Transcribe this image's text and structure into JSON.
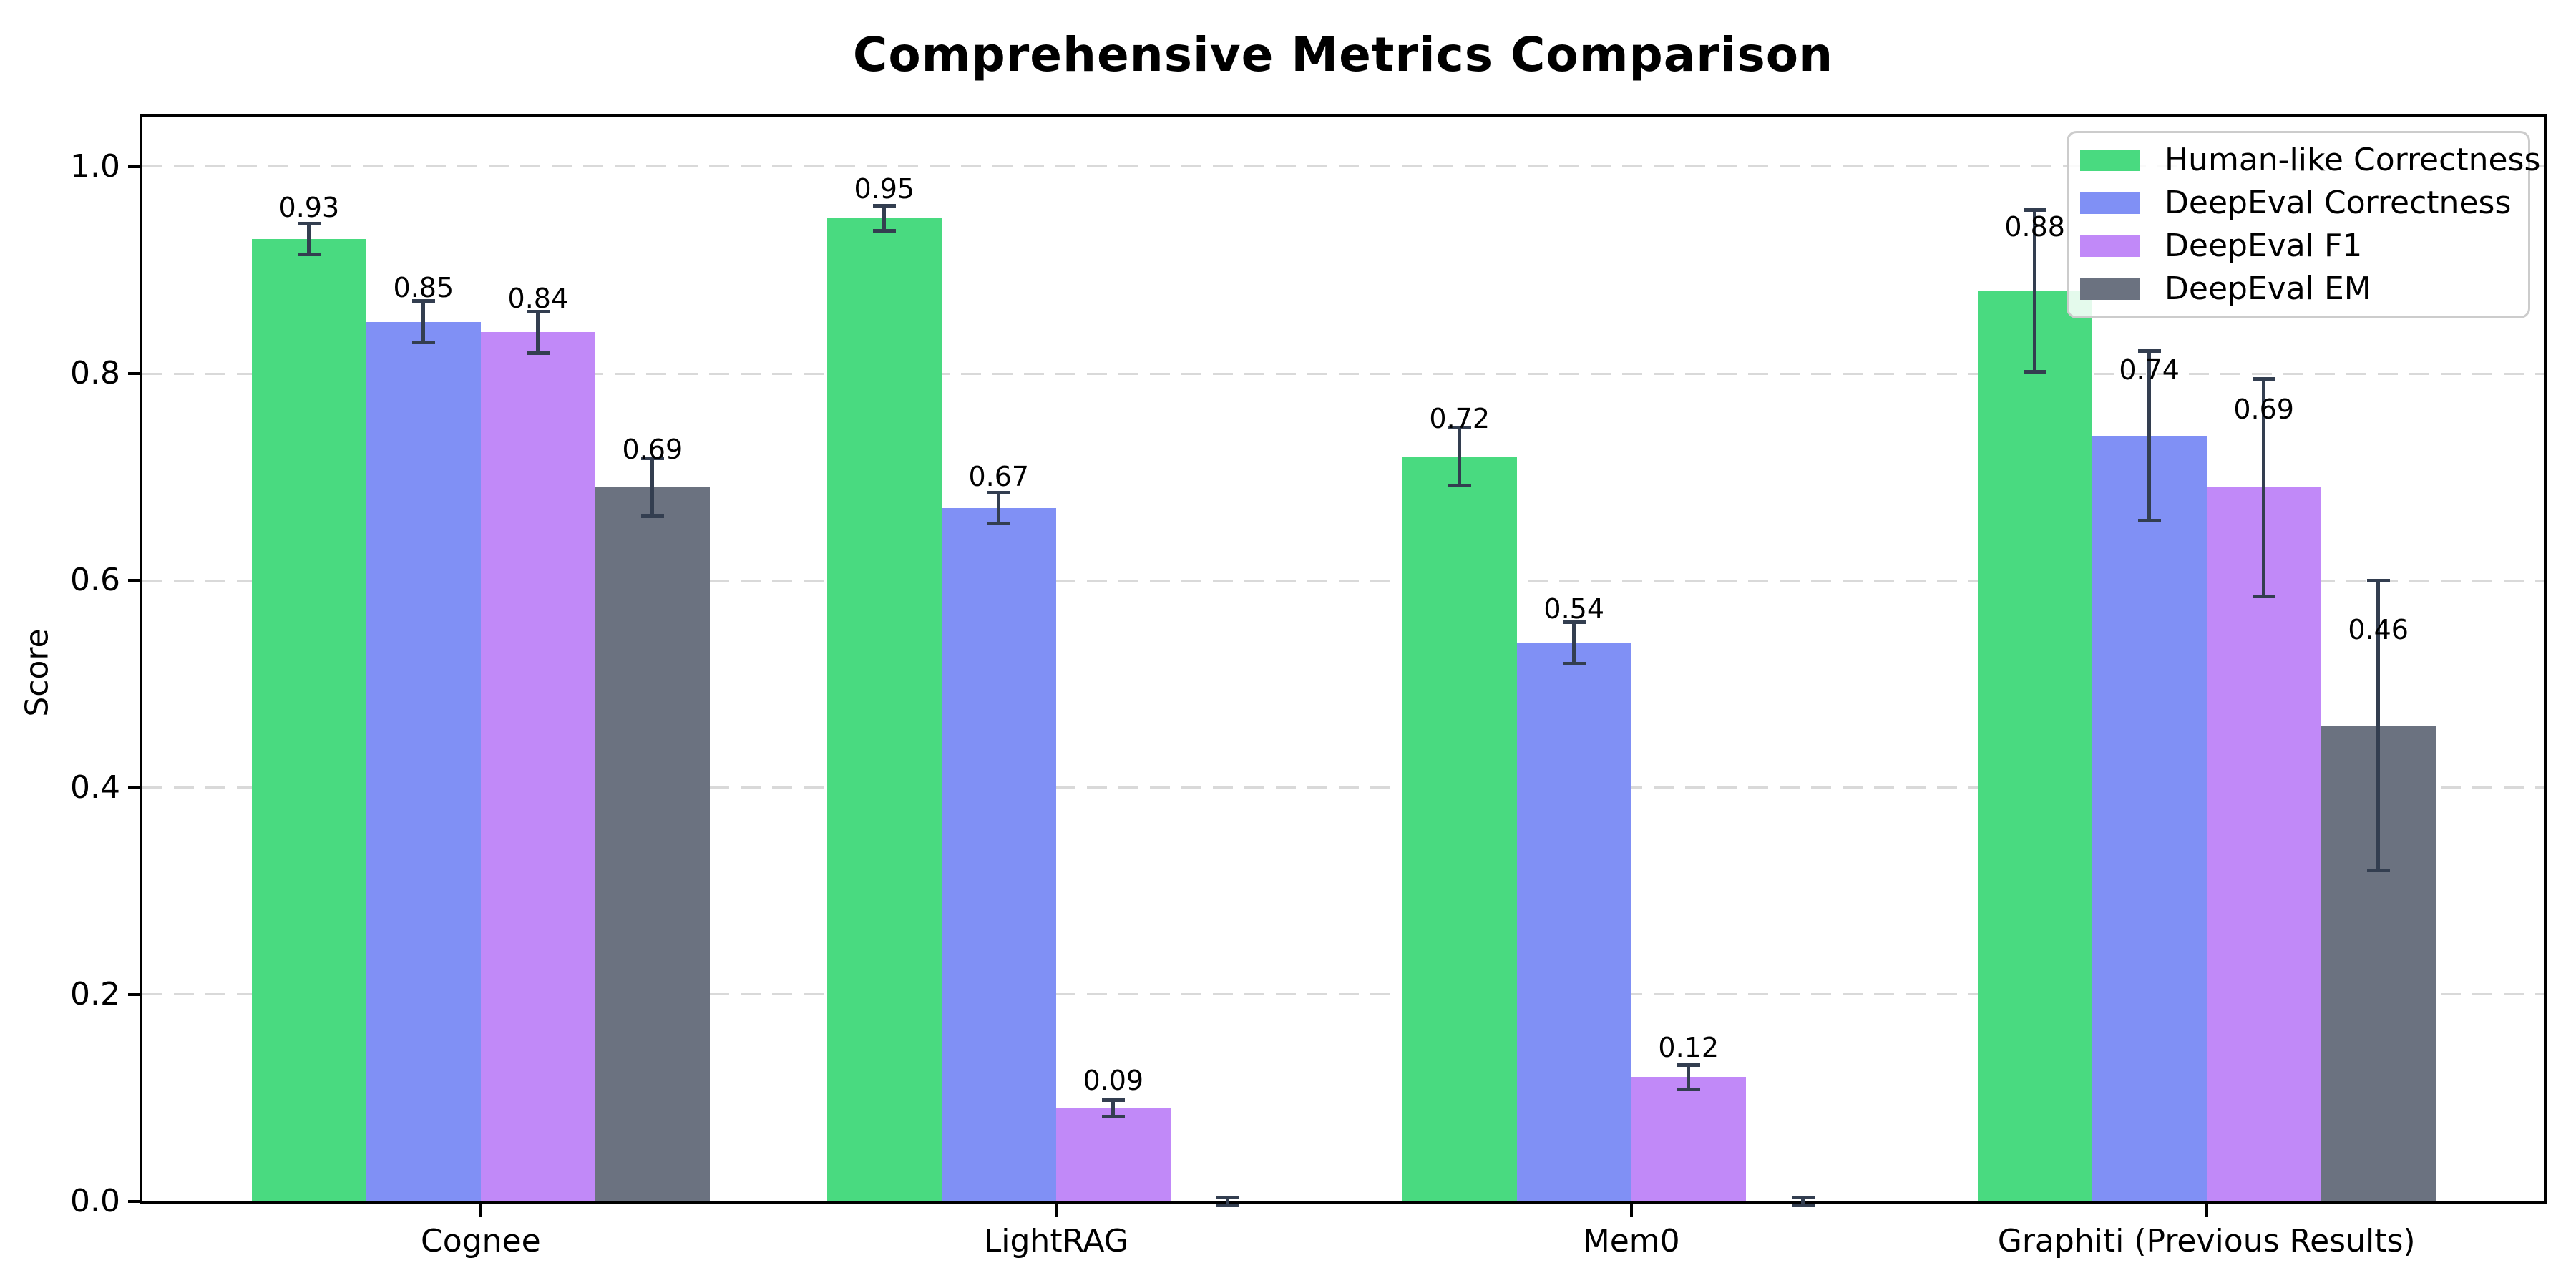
{
  "chart_data": {
    "type": "bar",
    "title": "Comprehensive Metrics Comparison",
    "ylabel": "Score",
    "categories": [
      "Cognee",
      "LightRAG",
      "Mem0",
      "Graphiti (Previous Results)"
    ],
    "series": [
      {
        "name": "Human-like Correctness",
        "color": "#49da80",
        "values": [
          0.93,
          0.95,
          0.72,
          0.88
        ],
        "errors": [
          0.015,
          0.012,
          0.028,
          0.078
        ],
        "labels": [
          "0.93",
          "0.95",
          "0.72",
          "0.88"
        ]
      },
      {
        "name": "DeepEval Correctness",
        "color": "#8090f5",
        "values": [
          0.85,
          0.67,
          0.54,
          0.74
        ],
        "errors": [
          0.02,
          0.015,
          0.02,
          0.082
        ],
        "labels": [
          "0.85",
          "0.67",
          "0.54",
          "0.74"
        ]
      },
      {
        "name": "DeepEval F1",
        "color": "#c189f8",
        "values": [
          0.84,
          0.09,
          0.12,
          0.69
        ],
        "errors": [
          0.02,
          0.008,
          0.012,
          0.105
        ],
        "labels": [
          "0.84",
          "0.09",
          "0.12",
          "0.69"
        ]
      },
      {
        "name": "DeepEval EM",
        "color": "#6b7280",
        "values": [
          0.69,
          0.0,
          0.0,
          0.46
        ],
        "errors": [
          0.028,
          0.004,
          0.004,
          0.14
        ],
        "labels": [
          "0.69",
          null,
          null,
          "0.46"
        ]
      }
    ],
    "ylim": [
      0,
      1.0477
    ],
    "ytick_values": [
      0,
      0.2,
      0.4,
      0.6,
      0.8,
      1.0
    ],
    "ytick_labels": [
      "0.0",
      "0.2",
      "0.4",
      "0.6",
      "0.8",
      "1.0"
    ],
    "error_bar_color": "#333e50",
    "grid": {
      "axis": "y",
      "style": "dashed"
    },
    "legend": {
      "position": "upper right"
    }
  }
}
